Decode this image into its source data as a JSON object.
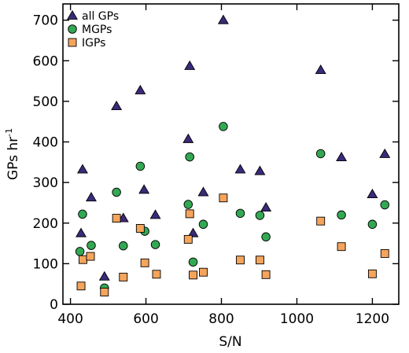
{
  "chart_data": {
    "type": "scatter",
    "title": "",
    "xlabel": "S/N",
    "ylabel_main": "GPs hr",
    "ylabel_sup": "-1",
    "xlim": [
      380,
      1270
    ],
    "ylim": [
      0,
      740
    ],
    "x_ticks": [
      400,
      600,
      800,
      1000,
      1200
    ],
    "y_ticks": [
      0,
      100,
      200,
      300,
      400,
      500,
      600,
      700
    ],
    "grid": false,
    "legend_position": "top-left",
    "series": [
      {
        "name": "all GPs",
        "marker": "triangle",
        "color": "#3b2a7a",
        "points": [
          [
            428,
            175
          ],
          [
            432,
            332
          ],
          [
            455,
            263
          ],
          [
            490,
            68
          ],
          [
            522,
            488
          ],
          [
            540,
            212
          ],
          [
            585,
            527
          ],
          [
            595,
            282
          ],
          [
            625,
            220
          ],
          [
            712,
            407
          ],
          [
            716,
            587
          ],
          [
            725,
            175
          ],
          [
            752,
            276
          ],
          [
            805,
            700
          ],
          [
            850,
            332
          ],
          [
            902,
            328
          ],
          [
            918,
            238
          ],
          [
            1063,
            577
          ],
          [
            1118,
            362
          ],
          [
            1200,
            271
          ],
          [
            1233,
            370
          ]
        ]
      },
      {
        "name": "MGPs",
        "marker": "circle",
        "color": "#33a852",
        "points": [
          [
            425,
            130
          ],
          [
            432,
            222
          ],
          [
            455,
            145
          ],
          [
            490,
            40
          ],
          [
            522,
            276
          ],
          [
            540,
            144
          ],
          [
            585,
            340
          ],
          [
            597,
            180
          ],
          [
            625,
            147
          ],
          [
            712,
            246
          ],
          [
            716,
            363
          ],
          [
            725,
            104
          ],
          [
            752,
            197
          ],
          [
            805,
            438
          ],
          [
            850,
            224
          ],
          [
            902,
            219
          ],
          [
            918,
            166
          ],
          [
            1063,
            371
          ],
          [
            1118,
            220
          ],
          [
            1200,
            197
          ],
          [
            1233,
            245
          ]
        ]
      },
      {
        "name": "IGPs",
        "marker": "square",
        "color": "#f5a45c",
        "points": [
          [
            428,
            45
          ],
          [
            433,
            110
          ],
          [
            453,
            118
          ],
          [
            490,
            30
          ],
          [
            522,
            212
          ],
          [
            540,
            67
          ],
          [
            585,
            187
          ],
          [
            597,
            102
          ],
          [
            628,
            74
          ],
          [
            712,
            160
          ],
          [
            716,
            223
          ],
          [
            725,
            72
          ],
          [
            752,
            79
          ],
          [
            805,
            262
          ],
          [
            850,
            109
          ],
          [
            902,
            109
          ],
          [
            918,
            73
          ],
          [
            1063,
            205
          ],
          [
            1118,
            142
          ],
          [
            1200,
            75
          ],
          [
            1233,
            125
          ]
        ]
      }
    ]
  }
}
